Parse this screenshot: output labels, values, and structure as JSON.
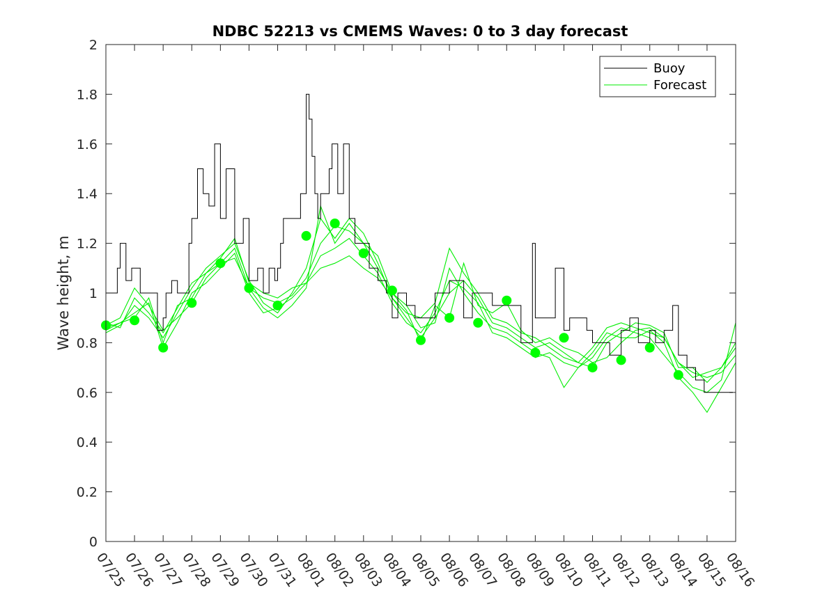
{
  "chart_data": {
    "type": "line",
    "title": "NDBC 52213 vs CMEMS Waves: 0 to 3 day forecast",
    "xlabel": "",
    "ylabel": "Wave height, m",
    "ylim": [
      0,
      2
    ],
    "xlim": [
      0,
      22
    ],
    "y_ticks": [
      "0",
      "0.2",
      "0.4",
      "0.6",
      "0.8",
      "1",
      "1.2",
      "1.4",
      "1.6",
      "1.8",
      "2"
    ],
    "x_ticks": [
      "07/25",
      "07/26",
      "07/27",
      "07/28",
      "07/29",
      "07/30",
      "07/31",
      "08/01",
      "08/02",
      "08/03",
      "08/04",
      "08/05",
      "08/06",
      "08/07",
      "08/08",
      "08/09",
      "08/10",
      "08/11",
      "08/12",
      "08/13",
      "08/14",
      "08/15",
      "08/16"
    ],
    "legend": {
      "position": "top-right",
      "entries": [
        "Buoy",
        "Forecast"
      ]
    },
    "colors": {
      "buoy": "#000000",
      "forecast": "#00ee00",
      "marker": "#00ff00"
    },
    "buoy": {
      "name": "Buoy",
      "x": [
        0.0,
        0.4,
        0.5,
        0.7,
        0.9,
        1.2,
        1.5,
        1.8,
        2.0,
        2.1,
        2.3,
        2.5,
        2.7,
        2.9,
        3.0,
        3.2,
        3.4,
        3.6,
        3.8,
        4.0,
        4.2,
        4.5,
        4.8,
        5.0,
        5.3,
        5.5,
        5.7,
        5.9,
        6.0,
        6.1,
        6.2,
        6.5,
        6.8,
        7.0,
        7.1,
        7.2,
        7.3,
        7.4,
        7.5,
        7.8,
        7.9,
        8.1,
        8.3,
        8.5,
        8.7,
        9.0,
        9.2,
        9.5,
        9.8,
        10.0,
        10.2,
        10.5,
        10.8,
        11.0,
        11.5,
        12.0,
        12.5,
        12.8,
        13.0,
        13.5,
        14.0,
        14.5,
        14.9,
        15.0,
        15.2,
        15.5,
        15.7,
        16.0,
        16.2,
        16.5,
        16.8,
        17.0,
        17.3,
        17.6,
        18.0,
        18.3,
        18.6,
        19.0,
        19.2,
        19.5,
        19.8,
        20.0,
        20.3,
        20.6,
        20.9,
        21.1,
        21.3,
        21.5,
        21.9
      ],
      "y": [
        1.0,
        1.1,
        1.2,
        1.05,
        1.1,
        1.0,
        1.0,
        0.85,
        0.9,
        1.0,
        1.05,
        1.0,
        1.0,
        1.2,
        1.3,
        1.5,
        1.4,
        1.35,
        1.6,
        1.3,
        1.5,
        1.2,
        1.3,
        1.05,
        1.1,
        1.0,
        1.1,
        1.05,
        1.1,
        1.2,
        1.3,
        1.3,
        1.4,
        1.8,
        1.7,
        1.55,
        1.4,
        1.3,
        1.4,
        1.5,
        1.6,
        1.4,
        1.6,
        1.3,
        1.2,
        1.2,
        1.1,
        1.05,
        1.0,
        0.9,
        1.0,
        0.95,
        0.9,
        0.9,
        1.0,
        1.05,
        0.9,
        1.0,
        1.0,
        0.95,
        0.95,
        0.8,
        1.2,
        0.9,
        0.9,
        0.9,
        1.1,
        0.85,
        0.9,
        0.9,
        0.85,
        0.8,
        0.8,
        0.75,
        0.85,
        0.9,
        0.8,
        0.85,
        0.8,
        0.85,
        0.95,
        0.75,
        0.7,
        0.65,
        0.6,
        0.6,
        0.6,
        0.6,
        0.6
      ]
    },
    "forecast_series": [
      {
        "name": "Forecast",
        "x": [
          0.0,
          0.5,
          1.0,
          1.5,
          2.0,
          2.5,
          3.0,
          3.5,
          4.0,
          4.5,
          5.0,
          5.5,
          6.0,
          6.5,
          7.0,
          7.5,
          8.0,
          8.5,
          9.0,
          9.5,
          10.0,
          10.5,
          11.0,
          11.5,
          12.0,
          12.5,
          13.0,
          13.5,
          14.0,
          14.5,
          15.0,
          15.5,
          16.0,
          16.5,
          17.0,
          17.5,
          18.0,
          18.5,
          19.0,
          19.5,
          20.0,
          20.5,
          21.0,
          21.5,
          22.0
        ],
        "y": [
          0.86,
          0.88,
          0.9,
          0.98,
          0.8,
          0.95,
          0.98,
          1.08,
          1.12,
          1.14,
          1.02,
          0.98,
          0.96,
          0.99,
          1.06,
          1.2,
          1.27,
          1.25,
          1.2,
          1.15,
          1.0,
          0.93,
          0.8,
          0.95,
          0.9,
          1.12,
          0.95,
          0.92,
          0.96,
          0.85,
          0.8,
          0.82,
          0.78,
          0.76,
          0.72,
          0.74,
          0.8,
          0.85,
          0.86,
          0.82,
          0.72,
          0.68,
          0.66,
          0.68,
          0.75
        ]
      },
      {
        "name": "Forecast",
        "x": [
          0.0,
          0.5,
          1.0,
          1.5,
          2.0,
          2.5,
          3.0,
          3.5,
          4.0,
          4.5,
          5.0,
          5.5,
          6.0,
          6.5,
          7.0,
          7.5,
          8.0,
          8.5,
          9.0,
          9.5,
          10.0,
          10.5,
          11.0,
          11.5,
          12.0,
          12.5,
          13.0,
          13.5,
          14.0,
          14.5,
          15.0,
          15.5,
          16.0,
          16.5,
          17.0,
          17.5,
          18.0,
          18.5,
          19.0,
          19.5,
          20.0,
          20.5,
          21.0,
          21.5,
          22.0
        ],
        "y": [
          0.84,
          0.87,
          0.95,
          0.9,
          0.82,
          0.92,
          1.02,
          1.1,
          1.15,
          1.2,
          1.05,
          0.96,
          0.92,
          1.0,
          1.1,
          1.3,
          1.22,
          1.3,
          1.24,
          1.12,
          0.98,
          0.9,
          0.82,
          0.9,
          1.0,
          1.05,
          0.98,
          0.88,
          0.86,
          0.82,
          0.78,
          0.8,
          0.76,
          0.72,
          0.7,
          0.8,
          0.84,
          0.88,
          0.87,
          0.84,
          0.7,
          0.7,
          0.64,
          0.7,
          0.78
        ]
      },
      {
        "name": "Forecast",
        "x": [
          0.0,
          0.5,
          1.0,
          1.5,
          2.0,
          2.5,
          3.0,
          3.5,
          4.0,
          4.5,
          5.0,
          5.5,
          6.0,
          6.5,
          7.0,
          7.5,
          8.0,
          8.5,
          9.0,
          9.5,
          10.0,
          10.5,
          11.0,
          11.5,
          12.0,
          12.5,
          13.0,
          13.5,
          14.0,
          14.5,
          15.0,
          15.5,
          16.0,
          16.5,
          17.0,
          17.5,
          18.0,
          18.5,
          19.0,
          19.5,
          20.0,
          20.5,
          21.0,
          21.5,
          22.0
        ],
        "y": [
          0.87,
          0.9,
          1.02,
          0.95,
          0.85,
          0.9,
          0.96,
          1.06,
          1.12,
          1.18,
          1.02,
          0.94,
          0.9,
          0.95,
          1.02,
          1.35,
          1.2,
          1.28,
          1.2,
          1.1,
          1.0,
          0.95,
          0.86,
          0.88,
          1.1,
          1.0,
          0.92,
          0.86,
          0.84,
          0.8,
          0.76,
          0.74,
          0.62,
          0.7,
          0.74,
          0.82,
          0.86,
          0.84,
          0.82,
          0.75,
          0.68,
          0.62,
          0.6,
          0.65,
          0.88
        ]
      },
      {
        "name": "Forecast",
        "x": [
          0.0,
          0.5,
          1.0,
          1.5,
          2.0,
          2.5,
          3.0,
          3.5,
          4.0,
          4.5,
          5.0,
          5.5,
          6.0,
          6.5,
          7.0,
          7.5,
          8.0,
          8.5,
          9.0,
          9.5,
          10.0,
          10.5,
          11.0,
          11.5,
          12.0,
          12.5,
          13.0,
          13.5,
          14.0,
          14.5,
          15.0,
          15.5,
          16.0,
          16.5,
          17.0,
          17.5,
          18.0,
          18.5,
          19.0,
          19.5,
          20.0,
          20.5,
          21.0,
          21.5,
          22.0
        ],
        "y": [
          0.85,
          0.88,
          0.92,
          0.96,
          0.78,
          0.88,
          1.0,
          1.04,
          1.1,
          1.16,
          1.0,
          0.92,
          0.94,
          0.98,
          1.04,
          1.15,
          1.18,
          1.22,
          1.15,
          1.08,
          0.96,
          0.88,
          0.84,
          0.92,
          1.05,
          1.02,
          0.96,
          0.84,
          0.82,
          0.78,
          0.74,
          0.76,
          0.72,
          0.7,
          0.76,
          0.84,
          0.82,
          0.82,
          0.85,
          0.8,
          0.66,
          0.6,
          0.52,
          0.62,
          0.72
        ]
      },
      {
        "name": "Forecast",
        "x": [
          0.0,
          0.5,
          1.0,
          1.5,
          2.0,
          2.5,
          3.0,
          3.5,
          4.0,
          4.5,
          5.0,
          5.5,
          6.0,
          6.5,
          7.0,
          7.5,
          8.0,
          8.5,
          9.0,
          9.5,
          10.0,
          10.5,
          11.0,
          11.5,
          12.0,
          12.5,
          13.0,
          13.5,
          14.0,
          14.5,
          15.0,
          15.5,
          16.0,
          16.5,
          17.0,
          17.5,
          18.0,
          18.5,
          19.0,
          19.5,
          20.0,
          20.5,
          21.0,
          21.5,
          22.0
        ],
        "y": [
          0.88,
          0.86,
          0.98,
          0.92,
          0.84,
          0.94,
          1.04,
          1.08,
          1.14,
          1.22,
          1.04,
          1.0,
          0.98,
          1.02,
          1.04,
          1.1,
          1.12,
          1.15,
          1.1,
          1.06,
          0.98,
          0.92,
          0.9,
          0.96,
          1.18,
          1.08,
          1.0,
          0.9,
          0.88,
          0.84,
          0.82,
          0.78,
          0.74,
          0.72,
          0.78,
          0.86,
          0.88,
          0.86,
          0.84,
          0.82,
          0.72,
          0.66,
          0.68,
          0.7,
          0.8
        ]
      }
    ],
    "daily_points": {
      "name": "Forecast",
      "x": [
        0,
        1,
        2,
        3,
        4,
        5,
        6,
        7,
        8,
        9,
        10,
        11,
        12,
        13,
        14,
        15,
        16,
        17,
        18,
        19,
        20
      ],
      "y": [
        0.87,
        0.89,
        0.78,
        0.96,
        1.12,
        1.02,
        0.95,
        1.23,
        1.28,
        1.16,
        1.01,
        0.81,
        0.9,
        0.88,
        0.97,
        0.76,
        0.82,
        0.7,
        0.73,
        0.78,
        0.67
      ]
    }
  }
}
